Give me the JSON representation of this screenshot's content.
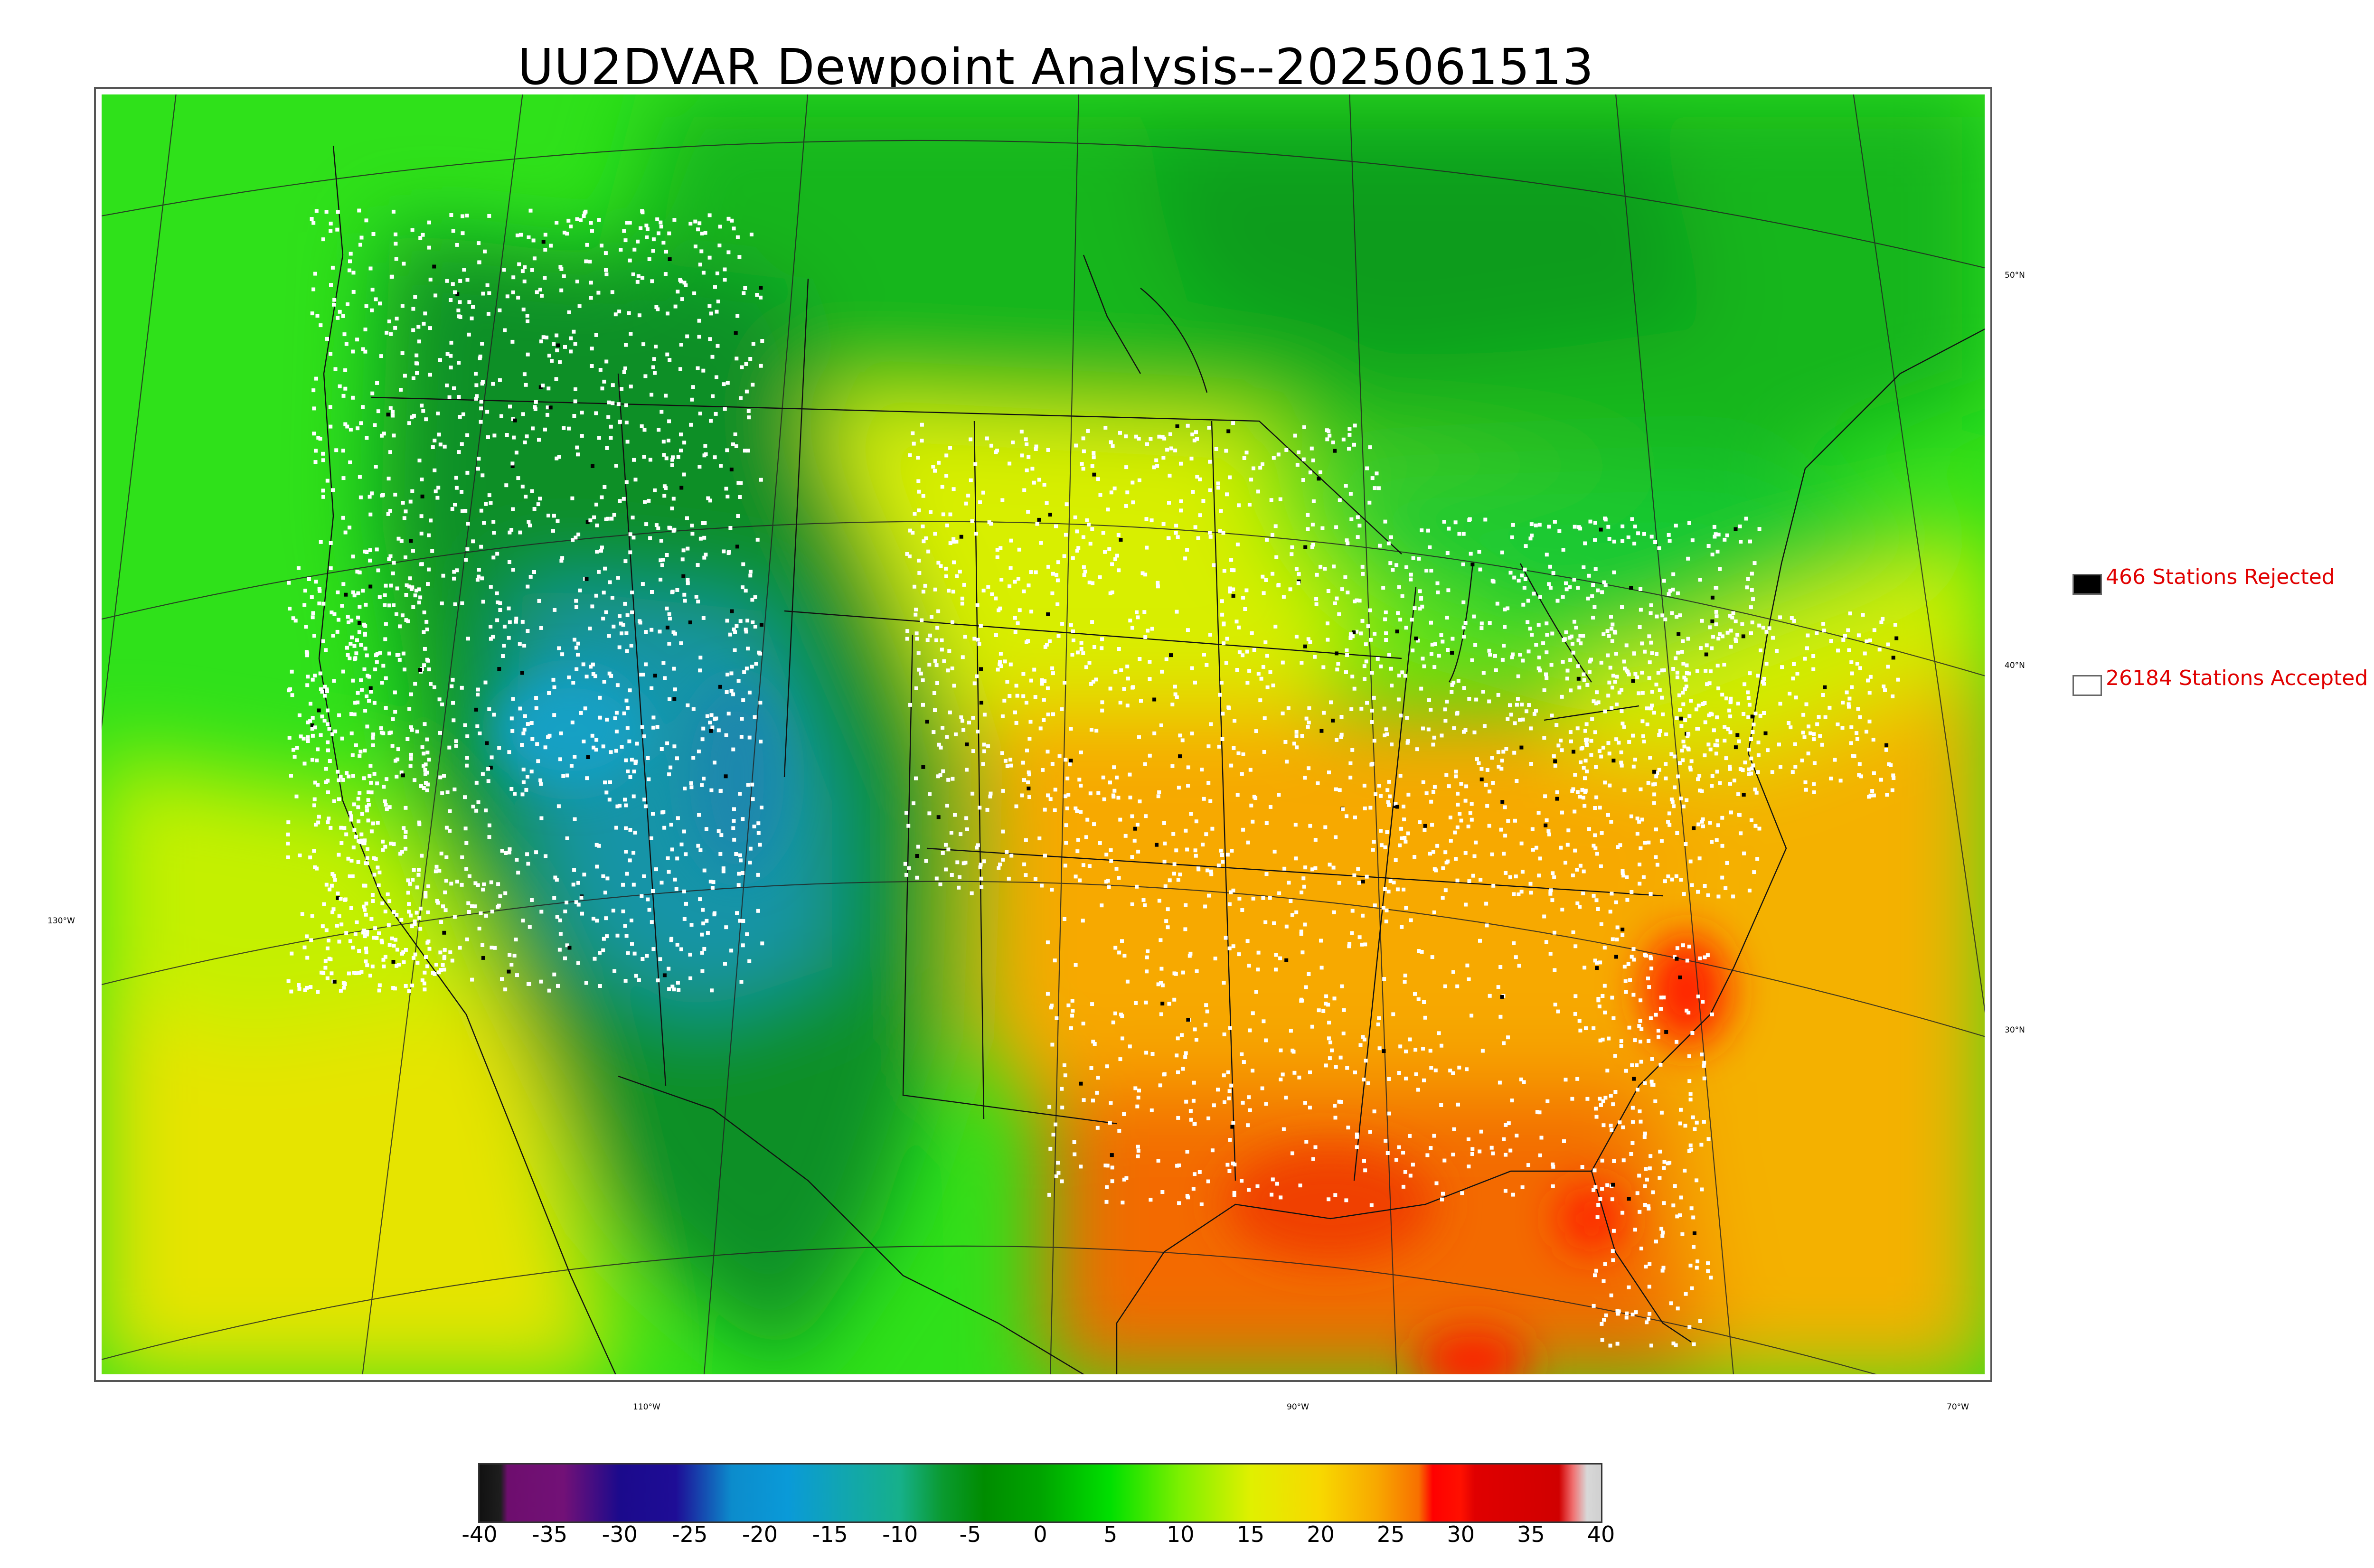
{
  "title": "UU2DVAR Dewpoint Analysis--2025061513",
  "graticule": {
    "lat_labels": [
      "50°N",
      "40°N",
      "30°N"
    ],
    "lon_labels": [
      "130°W",
      "110°W",
      "90°W",
      "70°W"
    ]
  },
  "legend": {
    "rejected": {
      "count": "466",
      "text": "466 Stations Rejected",
      "color": "#000000"
    },
    "accepted": {
      "count": "26184",
      "text": "26184 Stations Accepted",
      "color": "#ffffff"
    },
    "text_color": "#e00000"
  },
  "colorbar": {
    "min": -40,
    "max": 40,
    "tick_labels": [
      "-40",
      "-35",
      "-30",
      "-25",
      "-20",
      "-15",
      "-10",
      "-5",
      "0",
      "5",
      "10",
      "15",
      "20",
      "25",
      "30",
      "35",
      "40"
    ],
    "stops": [
      {
        "v": -40,
        "c": "#111111"
      },
      {
        "v": -38.5,
        "c": "#1e1e1e"
      },
      {
        "v": -38,
        "c": "#6e0e6e"
      },
      {
        "v": -34,
        "c": "#721177"
      },
      {
        "v": -30,
        "c": "#1b0a8c"
      },
      {
        "v": -26,
        "c": "#1e0d96"
      },
      {
        "v": -22,
        "c": "#0c8ccc"
      },
      {
        "v": -18,
        "c": "#0a9ad8"
      },
      {
        "v": -14,
        "c": "#11a6b0"
      },
      {
        "v": -10,
        "c": "#16b08a"
      },
      {
        "v": -7,
        "c": "#0a9a30"
      },
      {
        "v": -4,
        "c": "#008c00"
      },
      {
        "v": 0,
        "c": "#00a400"
      },
      {
        "v": 5,
        "c": "#00e000"
      },
      {
        "v": 10,
        "c": "#7ef000"
      },
      {
        "v": 15,
        "c": "#e0f000"
      },
      {
        "v": 20,
        "c": "#f8d800"
      },
      {
        "v": 24,
        "c": "#f8a800"
      },
      {
        "v": 27,
        "c": "#f87000"
      },
      {
        "v": 28,
        "c": "#ff0000"
      },
      {
        "v": 30,
        "c": "#ff1000"
      },
      {
        "v": 31,
        "c": "#e00000"
      },
      {
        "v": 37,
        "c": "#d00000"
      },
      {
        "v": 38,
        "c": "#f07070"
      },
      {
        "v": 39,
        "c": "#d8d8d8"
      },
      {
        "v": 40,
        "c": "#d0d0d0"
      }
    ]
  },
  "field_colors": {
    "north_canada": "#12b61a",
    "pacific": "#33e61a",
    "west_mountains": "#108f25",
    "great_basin": "#1494a8",
    "plains": "#d8ef00",
    "south": "#f7a900",
    "gulf": "#f36a00",
    "atlantic": "#f4b100",
    "great_lakes": "#19c930",
    "station_accepted": "#ffffff",
    "station_rejected": "#000000"
  }
}
